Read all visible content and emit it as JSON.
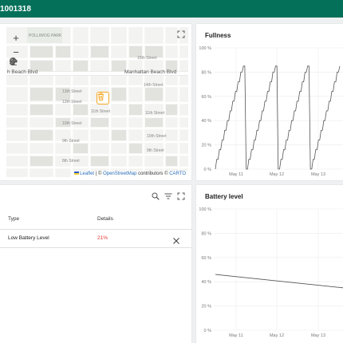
{
  "header": {
    "title": "1001318"
  },
  "map": {
    "zoom_in": "+",
    "zoom_out": "−",
    "tools": [
      "marker-tool",
      "move-tool",
      "erase-tool"
    ],
    "streets": {
      "park": "POLLIWOG PARK",
      "blvd_left": "h Beach Blvd",
      "blvd_right": "Manhattan Beach Blvd",
      "s1": "15th Street",
      "s2": "14th Street",
      "s3": "13th Street",
      "s4": "12th Street",
      "s5": "11th Street",
      "s6": "10th Street",
      "s7": "9th Street",
      "s8": "8th Street",
      "s9": "11th Street",
      "s10": "10th Street",
      "s11": "9th Street"
    },
    "attribution": {
      "leaflet": "Leaflet",
      "sep": " | © ",
      "osm": "OpenStreetMap",
      "contrib": " contributors © ",
      "carto": "CARTO"
    }
  },
  "fullness_chart": {
    "title": "Fullness",
    "chart_data": {
      "type": "line",
      "title": "Fullness",
      "y_ticks": [
        "100 %",
        "80 %",
        "60 %",
        "40 %",
        "20 %",
        "0 %"
      ],
      "x_ticks": [
        "May 11",
        "May 12",
        "May 13"
      ],
      "ylim": [
        0,
        100
      ],
      "series": [
        {
          "values_percent": [
            0,
            8,
            8,
            16,
            16,
            24,
            24,
            32,
            32,
            40,
            40,
            48,
            48,
            56,
            56,
            64,
            64,
            72,
            72,
            80,
            80,
            85,
            85,
            0,
            0,
            8,
            8,
            16,
            16,
            24,
            24,
            32,
            32,
            40,
            40,
            48,
            48,
            56,
            56,
            64,
            64,
            72,
            72,
            80,
            80,
            85,
            85,
            0,
            0,
            8,
            8,
            16,
            16,
            24,
            24,
            32,
            32,
            40,
            40,
            48,
            48,
            56,
            56,
            64,
            64,
            72,
            72,
            80,
            80,
            85,
            85,
            0,
            0,
            8,
            8,
            16,
            16,
            24,
            24,
            32,
            32,
            40,
            40,
            48,
            48,
            56,
            56,
            64,
            64,
            72,
            72,
            80,
            80,
            85
          ]
        }
      ],
      "grid": true
    }
  },
  "battery_chart": {
    "title": "Battery level",
    "chart_data": {
      "type": "line",
      "title": "Battery level",
      "y_ticks": [
        "100 %",
        "80 %",
        "60 %",
        "40 %",
        "20 %",
        "0 %"
      ],
      "x_ticks": [
        "May 11",
        "May 12",
        "May 13"
      ],
      "ylim": [
        0,
        100
      ],
      "series": [
        {
          "start": 46,
          "end": 35
        }
      ],
      "grid": true
    }
  },
  "alarms": {
    "columns": [
      "Type",
      "Details"
    ],
    "rows": [
      {
        "type": "Low Battery Level",
        "details": "21%"
      }
    ]
  },
  "colors": {
    "header": "#05705a",
    "warning": "#e53935",
    "bin_border": "#f5a623"
  }
}
